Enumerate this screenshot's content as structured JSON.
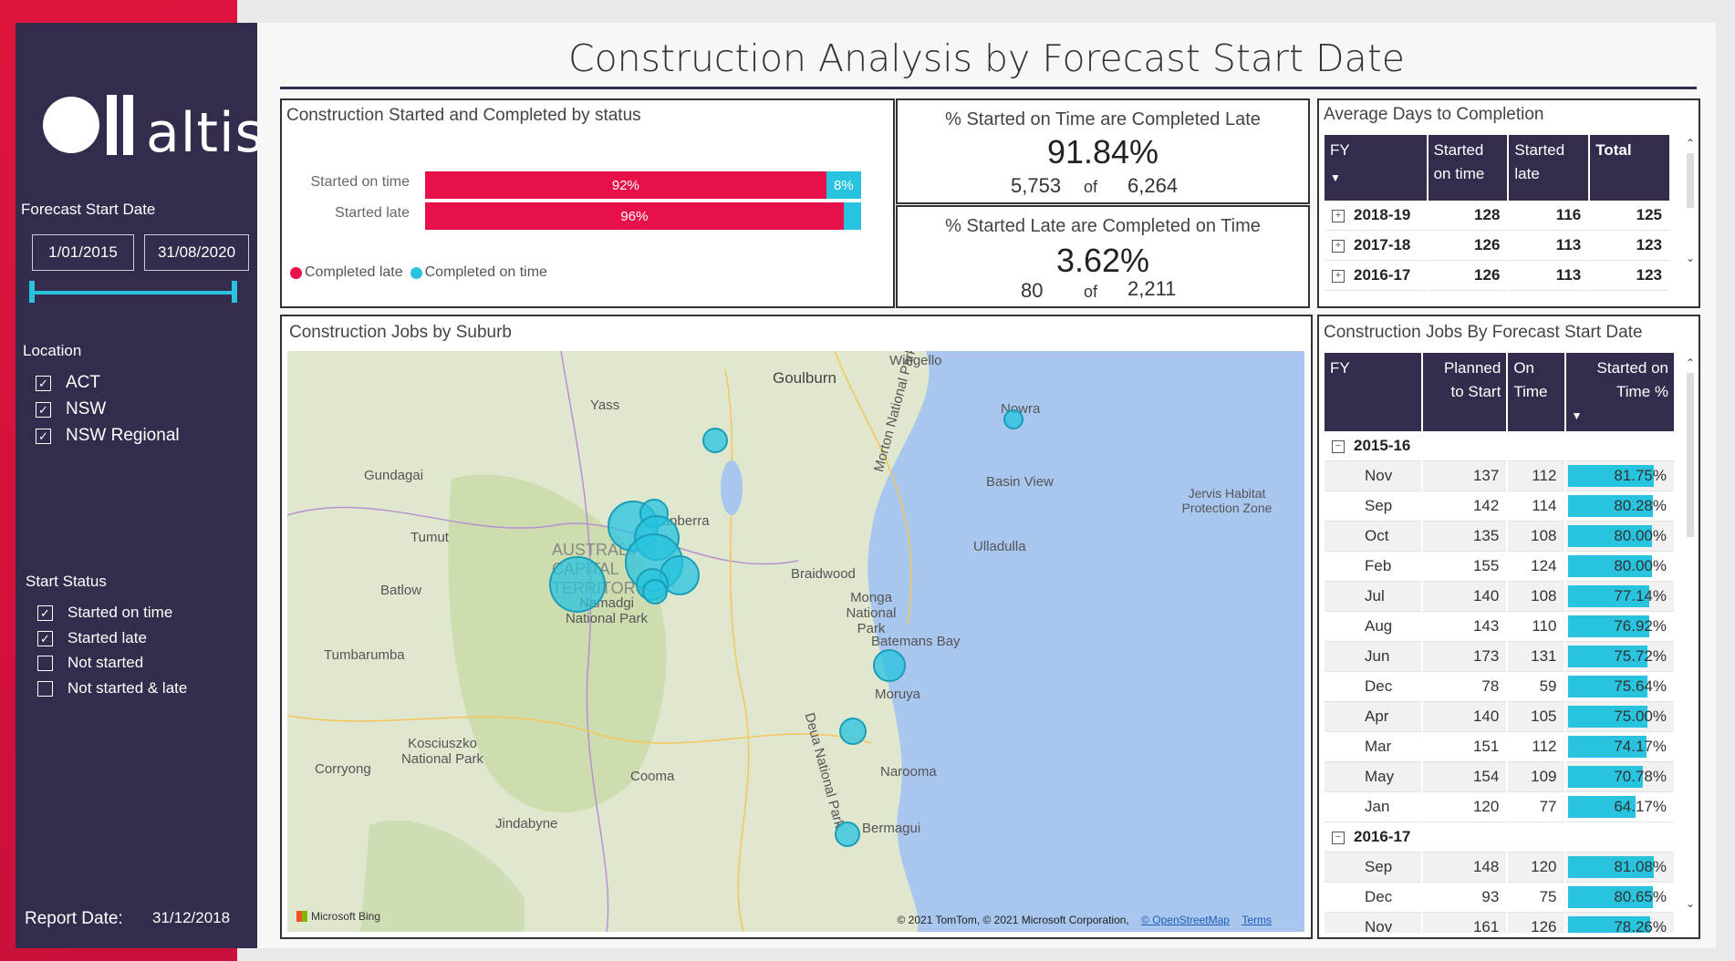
{
  "sidebar": {
    "logo_text": "altis",
    "forecast_label": "Forecast Start Date",
    "date_from": "1/01/2015",
    "date_to": "31/08/2020",
    "location_label": "Location",
    "locations": [
      {
        "label": "ACT",
        "checked": true
      },
      {
        "label": "NSW",
        "checked": true
      },
      {
        "label": "NSW Regional",
        "checked": true
      }
    ],
    "status_label": "Start Status",
    "statuses": [
      {
        "label": "Started on time",
        "checked": true
      },
      {
        "label": "Started late",
        "checked": true
      },
      {
        "label": "Not started",
        "checked": false
      },
      {
        "label": "Not started & late",
        "checked": false
      }
    ],
    "report_label": "Report Date:",
    "report_date": "31/12/2018"
  },
  "page_title": "Construction Analysis by Forecast Start Date",
  "status_panel": {
    "title": "Construction Started and Completed by status",
    "rows": [
      {
        "label": "Started on time",
        "late_pct": 92,
        "late_text": "92%",
        "ontime_text": "8%"
      },
      {
        "label": "Started late",
        "late_pct": 96,
        "late_text": "96%",
        "ontime_text": ""
      }
    ],
    "legend_late": "Completed late",
    "legend_ontime": "Completed on time",
    "color_late": "#e8104a",
    "color_ontime": "#27c3df"
  },
  "card1": {
    "title": "% Started on Time are Completed Late",
    "value": "91.84%",
    "num": "5,753",
    "of": "of",
    "den": "6,264"
  },
  "card2": {
    "title": "% Started Late are Completed on Time",
    "value": "3.62%",
    "num": "80",
    "of": "of",
    "den": "2,211"
  },
  "avg_days": {
    "title": "Average Days to Completion",
    "headers": [
      "FY",
      "Started on time",
      "Started late",
      "Total"
    ],
    "rows": [
      {
        "fy": "2018-19",
        "on_time": "128",
        "late": "116",
        "total": "125"
      },
      {
        "fy": "2017-18",
        "on_time": "126",
        "late": "113",
        "total": "123"
      },
      {
        "fy": "2016-17",
        "on_time": "126",
        "late": "113",
        "total": "123"
      }
    ]
  },
  "map_panel": {
    "title": "Construction Jobs by Suburb",
    "labels": [
      "Wingello",
      "Goulburn",
      "Yass",
      "Morton National Park",
      "Nowra",
      "Gundagai",
      "Basin View",
      "Jervis Habitat Protection Zone",
      "Canberra",
      "Tumut",
      "AUSTRALIAN CAPITAL TERRITORY",
      "Ulladulla",
      "Batlow",
      "Namadgi National Park",
      "Braidwood",
      "Monga National Park",
      "Batemans Bay",
      "Deua National Park",
      "Tumbarumba",
      "Moruya",
      "Kosciuszko National Park",
      "Corryong",
      "Cooma",
      "Narooma",
      "Jindabyne",
      "Bermagui"
    ],
    "copyright": "© 2021 TomTom, © 2021 Microsoft Corporation,",
    "osm": "© OpenStreetMap",
    "terms": "Terms",
    "bing": "Microsoft Bing"
  },
  "jobs_table": {
    "title": "Construction Jobs By Forecast Start Date",
    "headers": [
      "FY",
      "Planned to Start",
      "On Time",
      "Started on Time %"
    ],
    "groups": [
      {
        "fy": "2015-16",
        "rows": [
          {
            "m": "Nov",
            "p": "137",
            "o": "112",
            "pct": "81.75%",
            "v": 81.75
          },
          {
            "m": "Sep",
            "p": "142",
            "o": "114",
            "pct": "80.28%",
            "v": 80.28
          },
          {
            "m": "Oct",
            "p": "135",
            "o": "108",
            "pct": "80.00%",
            "v": 80.0
          },
          {
            "m": "Feb",
            "p": "155",
            "o": "124",
            "pct": "80.00%",
            "v": 80.0
          },
          {
            "m": "Jul",
            "p": "140",
            "o": "108",
            "pct": "77.14%",
            "v": 77.14
          },
          {
            "m": "Aug",
            "p": "143",
            "o": "110",
            "pct": "76.92%",
            "v": 76.92
          },
          {
            "m": "Jun",
            "p": "173",
            "o": "131",
            "pct": "75.72%",
            "v": 75.72
          },
          {
            "m": "Dec",
            "p": "78",
            "o": "59",
            "pct": "75.64%",
            "v": 75.64
          },
          {
            "m": "Apr",
            "p": "140",
            "o": "105",
            "pct": "75.00%",
            "v": 75.0
          },
          {
            "m": "Mar",
            "p": "151",
            "o": "112",
            "pct": "74.17%",
            "v": 74.17
          },
          {
            "m": "May",
            "p": "154",
            "o": "109",
            "pct": "70.78%",
            "v": 70.78
          },
          {
            "m": "Jan",
            "p": "120",
            "o": "77",
            "pct": "64.17%",
            "v": 64.17
          }
        ]
      },
      {
        "fy": "2016-17",
        "rows": [
          {
            "m": "Sep",
            "p": "148",
            "o": "120",
            "pct": "81.08%",
            "v": 81.08
          },
          {
            "m": "Dec",
            "p": "93",
            "o": "75",
            "pct": "80.65%",
            "v": 80.65
          },
          {
            "m": "Nov",
            "p": "161",
            "o": "126",
            "pct": "78.26%",
            "v": 78.26
          }
        ]
      }
    ]
  }
}
